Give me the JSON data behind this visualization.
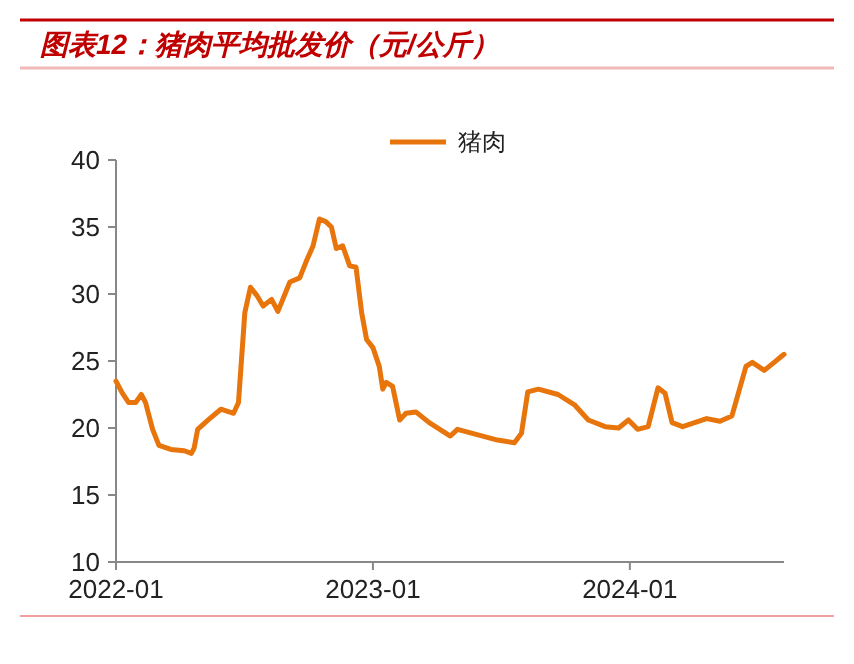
{
  "chart_data": {
    "type": "line",
    "title": "图表12：猪肉平均批发价（元/公斤）",
    "series": [
      {
        "name": "猪肉",
        "color": "#e8740c",
        "x": [
          "2022-01-01",
          "2022-01-10",
          "2022-01-19",
          "2022-01-29",
          "2022-02-06",
          "2022-02-12",
          "2022-02-22",
          "2022-03-03",
          "2022-03-20",
          "2022-04-08",
          "2022-04-18",
          "2022-04-22",
          "2022-04-27",
          "2022-05-12",
          "2022-05-30",
          "2022-06-17",
          "2022-06-24",
          "2022-07-03",
          "2022-07-11",
          "2022-07-20",
          "2022-07-29",
          "2022-08-10",
          "2022-08-19",
          "2022-09-05",
          "2022-09-19",
          "2022-09-28",
          "2022-10-08",
          "2022-10-17",
          "2022-10-26",
          "2022-11-03",
          "2022-11-10",
          "2022-11-19",
          "2022-11-29",
          "2022-12-08",
          "2022-12-16",
          "2022-12-23",
          "2023-01-01",
          "2023-01-10",
          "2023-01-15",
          "2023-01-20",
          "2023-01-29",
          "2023-02-08",
          "2023-02-17",
          "2023-03-03",
          "2023-03-22",
          "2023-04-21",
          "2023-05-01",
          "2023-05-29",
          "2023-06-27",
          "2023-07-21",
          "2023-07-31",
          "2023-08-09",
          "2023-08-24",
          "2023-09-21",
          "2023-10-15",
          "2023-11-03",
          "2023-11-27",
          "2023-12-16",
          "2023-12-30",
          "2024-01-12",
          "2024-01-27",
          "2024-02-10",
          "2024-02-20",
          "2024-03-01",
          "2024-03-16",
          "2024-04-19",
          "2024-05-08",
          "2024-05-25",
          "2024-06-14",
          "2024-06-23",
          "2024-07-10",
          "2024-07-24",
          "2024-08-07"
        ],
        "values": [
          23.5,
          22.6,
          21.9,
          21.9,
          22.5,
          21.9,
          19.9,
          18.7,
          18.4,
          18.3,
          18.1,
          18.5,
          19.9,
          20.6,
          21.4,
          21.1,
          21.9,
          28.6,
          30.5,
          29.9,
          29.1,
          29.6,
          28.7,
          30.9,
          31.2,
          32.4,
          33.6,
          35.6,
          35.4,
          35.0,
          33.4,
          33.6,
          32.1,
          32.0,
          28.6,
          26.6,
          26.0,
          24.6,
          22.9,
          23.4,
          23.1,
          20.6,
          21.1,
          21.2,
          20.4,
          19.4,
          19.9,
          19.5,
          19.1,
          18.9,
          19.6,
          22.7,
          22.9,
          22.5,
          21.7,
          20.6,
          20.1,
          20.0,
          20.6,
          19.9,
          20.1,
          23.0,
          22.6,
          20.4,
          20.1,
          20.7,
          20.5,
          20.9,
          24.6,
          24.9,
          24.3,
          24.9,
          25.5
        ]
      }
    ],
    "xlim": [
      "2022-01-01",
      "2024-08-07"
    ],
    "xticks": [
      {
        "value": "2022-01-01",
        "label": "2022-01"
      },
      {
        "value": "2023-01-01",
        "label": "2023-01"
      },
      {
        "value": "2024-01-01",
        "label": "2024-01"
      }
    ],
    "ylim": [
      10,
      40
    ],
    "yticks": [
      10,
      15,
      20,
      25,
      30,
      35,
      40
    ],
    "legend": "top",
    "marker": "none",
    "line_style": "solid",
    "grid": false
  }
}
